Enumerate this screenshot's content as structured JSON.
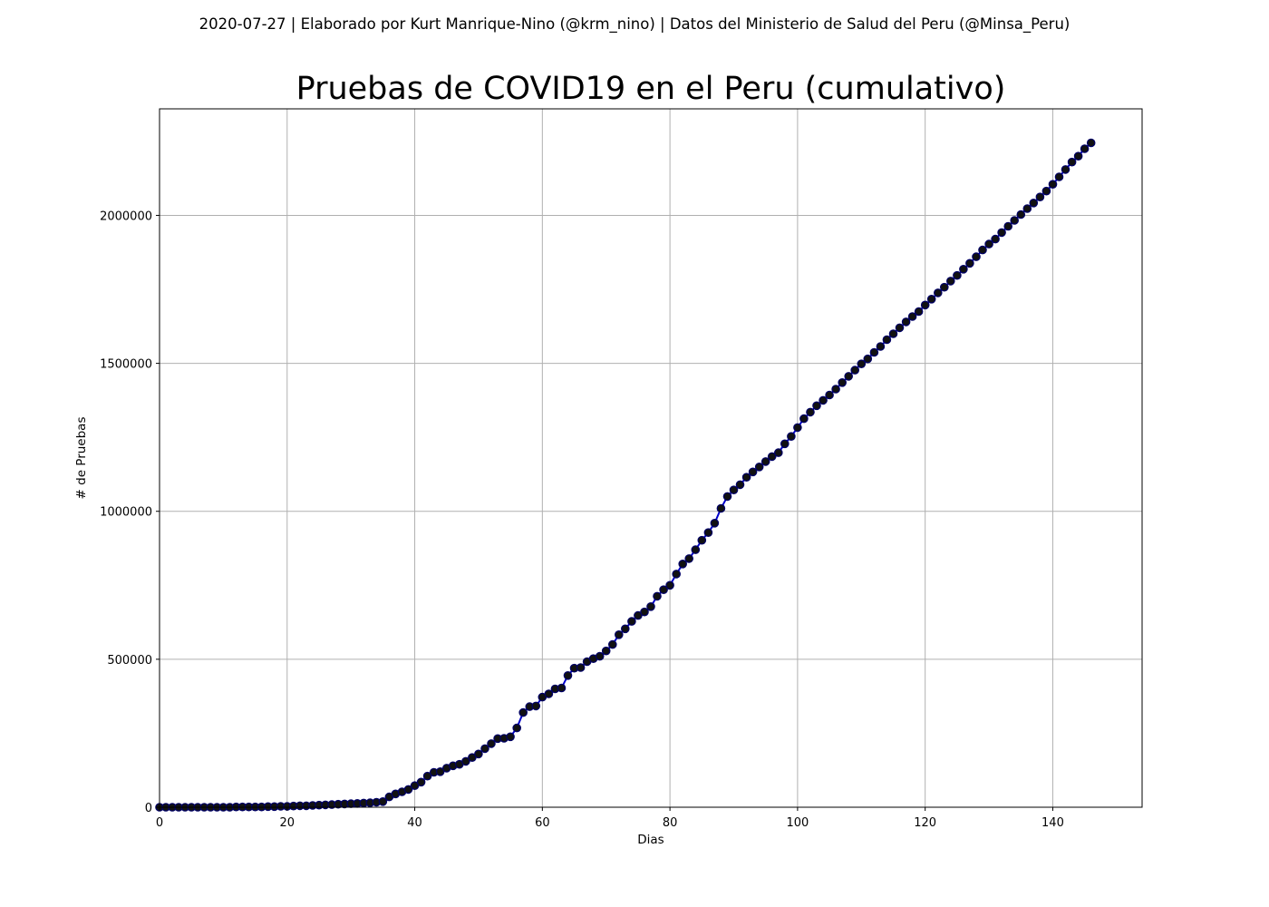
{
  "header": {
    "suptitle": "2020-07-27 | Elaborado por Kurt Manrique-Nino (@krm_nino) | Datos del Ministerio de Salud del Peru (@Minsa_Peru)"
  },
  "chart_data": {
    "type": "line",
    "title": "Pruebas de COVID19 en el Peru (cumulativo)",
    "xlabel": "Dias",
    "ylabel": "# de Pruebas",
    "xlim": [
      0,
      154
    ],
    "ylim": [
      0,
      2360000
    ],
    "xticks": [
      0,
      20,
      40,
      60,
      80,
      100,
      120,
      140
    ],
    "yticks": [
      0,
      500000,
      1000000,
      1500000,
      2000000
    ],
    "grid": true,
    "line_color": "#0000cc",
    "marker_color": "#111111",
    "series": [
      {
        "x": [
          0,
          1,
          2,
          3,
          4,
          5,
          6,
          7,
          8,
          9,
          10,
          11,
          12,
          13,
          14,
          15,
          16,
          17,
          18,
          19,
          20,
          21,
          22,
          23,
          24,
          25,
          26,
          27,
          28,
          29,
          30,
          31,
          32,
          33,
          34,
          35,
          36,
          37,
          38,
          39,
          40,
          41,
          42,
          43,
          44,
          45,
          46,
          47,
          48,
          49,
          50,
          51,
          52,
          53,
          54,
          55,
          56,
          57,
          58,
          59,
          60,
          61,
          62,
          63,
          64,
          65,
          66,
          67,
          68,
          69,
          70,
          71,
          72,
          73,
          74,
          75,
          76,
          77,
          78,
          79,
          80,
          81,
          82,
          83,
          84,
          85,
          86,
          87,
          88,
          89,
          90,
          91,
          92,
          93,
          94,
          95,
          96,
          97,
          98,
          99,
          100,
          101,
          102,
          103,
          104,
          105,
          106,
          107,
          108,
          109,
          110,
          111,
          112,
          113,
          114,
          115,
          116,
          117,
          118,
          119,
          120,
          121,
          122,
          123,
          124,
          125,
          126,
          127,
          128,
          129,
          130,
          131,
          132,
          133,
          134,
          135,
          136,
          137,
          138,
          139,
          140,
          141,
          142,
          143,
          144,
          145,
          146
        ],
        "y": [
          0,
          0,
          0,
          0,
          0,
          0,
          0,
          0,
          0,
          0,
          0,
          0,
          1000,
          1000,
          1000,
          1000,
          1000,
          2000,
          2000,
          3000,
          3000,
          4000,
          5000,
          5000,
          6000,
          7000,
          8000,
          9000,
          10000,
          11000,
          12000,
          13000,
          14000,
          15000,
          17000,
          19000,
          35000,
          45000,
          52000,
          60000,
          73000,
          85000,
          105000,
          118000,
          120000,
          132000,
          140000,
          145000,
          155000,
          168000,
          180000,
          198000,
          215000,
          232000,
          233000,
          238000,
          268000,
          320000,
          340000,
          342000,
          372000,
          383000,
          400000,
          403000,
          445000,
          470000,
          472000,
          492000,
          502000,
          510000,
          528000,
          550000,
          583000,
          603000,
          628000,
          648000,
          660000,
          678000,
          713000,
          735000,
          750000,
          788000,
          822000,
          840000,
          870000,
          902000,
          928000,
          960000,
          1010000,
          1050000,
          1072000,
          1090000,
          1115000,
          1133000,
          1150000,
          1168000,
          1185000,
          1198000,
          1228000,
          1253000,
          1283000,
          1313000,
          1335000,
          1357000,
          1375000,
          1393000,
          1413000,
          1435000,
          1456000,
          1477000,
          1498000,
          1515000,
          1537000,
          1557000,
          1580000,
          1600000,
          1620000,
          1640000,
          1658000,
          1675000,
          1697000,
          1717000,
          1738000,
          1757000,
          1778000,
          1797000,
          1818000,
          1838000,
          1860000,
          1883000,
          1903000,
          1920000,
          1942000,
          1963000,
          1983000,
          2003000,
          2023000,
          2042000,
          2062000,
          2082000,
          2105000,
          2130000,
          2155000,
          2180000,
          2200000,
          2225000,
          2245000
        ]
      }
    ]
  }
}
